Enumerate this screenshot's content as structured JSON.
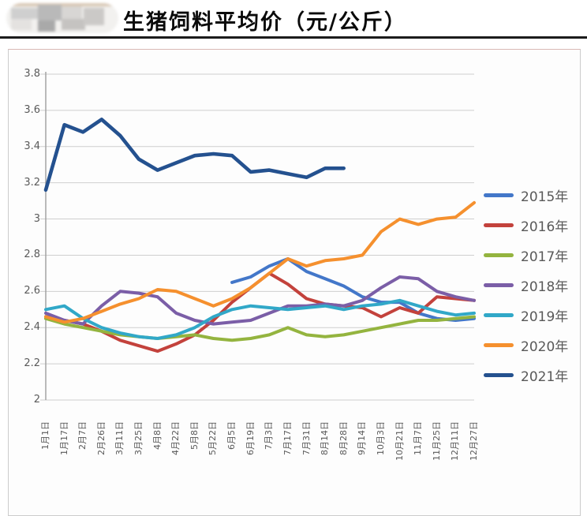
{
  "header": {
    "title": "生猪饲料平均价（元/公斤）"
  },
  "chart_data": {
    "type": "line",
    "title": "生猪饲料平均价（元/公斤）",
    "ylabel": "元/公斤",
    "ylim": [
      2,
      3.8
    ],
    "grid": true,
    "legend_position": "right",
    "y_ticks": [
      "3.8",
      "3.6",
      "3.4",
      "3.2",
      "3",
      "2.8",
      "2.6",
      "2.4",
      "2.2",
      "2"
    ],
    "categories": [
      "1月1日",
      "1月17日",
      "2月7日",
      "2月26日",
      "3月11日",
      "3月25日",
      "4月8日",
      "4月22日",
      "5月8日",
      "5月22日",
      "6月5日",
      "6月19日",
      "7月3日",
      "7月17日",
      "7月31日",
      "8月14日",
      "8月28日",
      "9月14日",
      "10月3日",
      "10月21日",
      "11月7日",
      "11月25日",
      "12月11日",
      "12月27日"
    ],
    "series": [
      {
        "name": "2015年",
        "color": "#4377C9",
        "values": [
          null,
          null,
          null,
          null,
          null,
          null,
          null,
          null,
          null,
          null,
          2.65,
          2.68,
          2.74,
          2.78,
          2.71,
          2.67,
          2.63,
          2.57,
          2.54,
          2.54,
          2.48,
          2.45,
          2.44,
          2.45
        ]
      },
      {
        "name": "2016年",
        "color": "#C3423C",
        "values": [
          2.46,
          2.44,
          2.42,
          2.38,
          2.33,
          2.3,
          2.27,
          2.31,
          2.36,
          2.44,
          2.54,
          2.62,
          2.7,
          2.64,
          2.56,
          2.53,
          2.52,
          2.51,
          2.46,
          2.51,
          2.48,
          2.57,
          2.56,
          2.55
        ]
      },
      {
        "name": "2017年",
        "color": "#94B43F",
        "values": [
          2.45,
          2.42,
          2.4,
          2.38,
          2.36,
          2.35,
          2.34,
          2.35,
          2.36,
          2.34,
          2.33,
          2.34,
          2.36,
          2.4,
          2.36,
          2.35,
          2.36,
          2.38,
          2.4,
          2.42,
          2.44,
          2.44,
          2.45,
          2.46
        ]
      },
      {
        "name": "2018年",
        "color": "#7B5EA7",
        "values": [
          2.48,
          2.44,
          2.42,
          2.52,
          2.6,
          2.59,
          2.57,
          2.48,
          2.44,
          2.42,
          2.43,
          2.44,
          2.48,
          2.52,
          2.52,
          2.53,
          2.52,
          2.55,
          2.62,
          2.68,
          2.67,
          2.6,
          2.57,
          2.55
        ]
      },
      {
        "name": "2019年",
        "color": "#31A8C8",
        "values": [
          2.5,
          2.52,
          2.45,
          2.4,
          2.37,
          2.35,
          2.34,
          2.36,
          2.4,
          2.46,
          2.5,
          2.52,
          2.51,
          2.5,
          2.51,
          2.52,
          2.5,
          2.52,
          2.53,
          2.55,
          2.52,
          2.49,
          2.47,
          2.48
        ]
      },
      {
        "name": "2020年",
        "color": "#F5902E",
        "values": [
          2.46,
          2.43,
          2.45,
          2.49,
          2.53,
          2.56,
          2.61,
          2.6,
          2.56,
          2.52,
          2.56,
          2.62,
          2.7,
          2.78,
          2.74,
          2.77,
          2.78,
          2.8,
          2.93,
          3.0,
          2.97,
          3.0,
          3.01,
          3.09
        ]
      },
      {
        "name": "2021年",
        "color": "#24518F",
        "values": [
          3.16,
          3.52,
          3.48,
          3.55,
          3.46,
          3.33,
          3.27,
          3.31,
          3.35,
          3.36,
          3.35,
          3.26,
          3.27,
          3.25,
          3.23,
          3.28,
          3.28,
          null,
          null,
          null,
          null,
          null,
          null,
          null
        ]
      }
    ]
  }
}
